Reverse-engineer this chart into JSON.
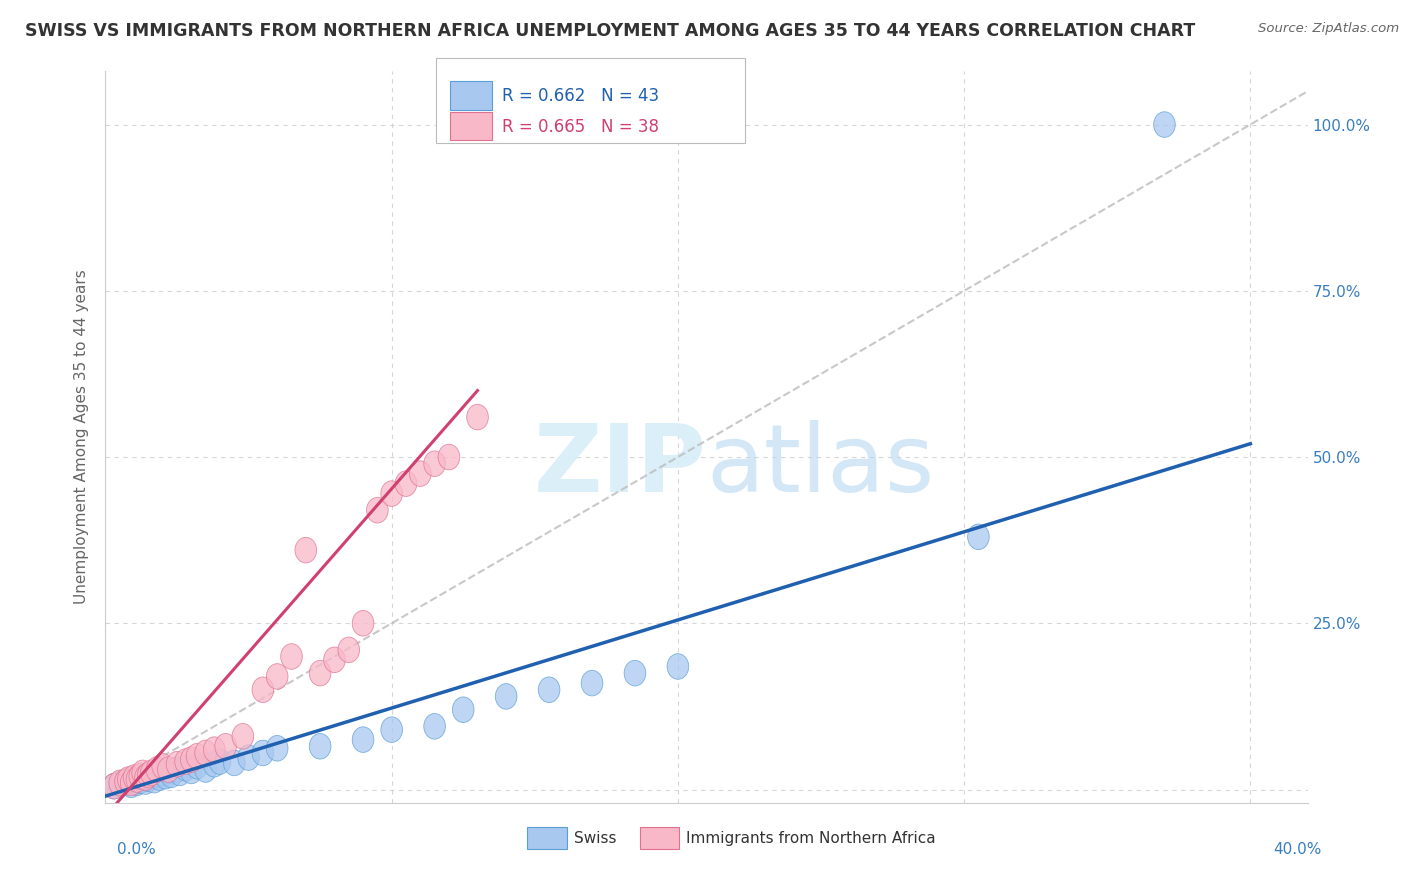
{
  "title": "SWISS VS IMMIGRANTS FROM NORTHERN AFRICA UNEMPLOYMENT AMONG AGES 35 TO 44 YEARS CORRELATION CHART",
  "source": "Source: ZipAtlas.com",
  "ylabel": "Unemployment Among Ages 35 to 44 years",
  "xlim": [
    0.0,
    0.42
  ],
  "ylim": [
    -0.02,
    1.08
  ],
  "swiss_R": 0.662,
  "swiss_N": 43,
  "immigrants_R": 0.665,
  "immigrants_N": 38,
  "swiss_color": "#a8c8f0",
  "swiss_edge_color": "#5a9fd4",
  "swiss_line_color": "#2060b0",
  "immigrants_color": "#f8b8c8",
  "immigrants_edge_color": "#e07090",
  "immigrants_line_color": "#d04070",
  "ref_line_color": "#bbbbbb",
  "background_color": "#ffffff",
  "grid_color": "#cccccc",
  "watermark_color": "#d8eef8",
  "title_color": "#333333",
  "swiss_x": [
    0.003,
    0.005,
    0.007,
    0.008,
    0.009,
    0.01,
    0.011,
    0.012,
    0.013,
    0.014,
    0.015,
    0.016,
    0.017,
    0.018,
    0.019,
    0.02,
    0.021,
    0.022,
    0.023,
    0.025,
    0.026,
    0.028,
    0.03,
    0.032,
    0.035,
    0.038,
    0.04,
    0.045,
    0.05,
    0.055,
    0.06,
    0.075,
    0.09,
    0.1,
    0.115,
    0.125,
    0.14,
    0.155,
    0.17,
    0.185,
    0.2,
    0.305,
    0.37
  ],
  "swiss_y": [
    0.005,
    0.008,
    0.01,
    0.012,
    0.007,
    0.015,
    0.01,
    0.013,
    0.018,
    0.012,
    0.016,
    0.02,
    0.014,
    0.022,
    0.018,
    0.025,
    0.02,
    0.028,
    0.022,
    0.03,
    0.025,
    0.032,
    0.028,
    0.035,
    0.03,
    0.038,
    0.042,
    0.04,
    0.048,
    0.055,
    0.062,
    0.065,
    0.075,
    0.09,
    0.095,
    0.12,
    0.14,
    0.15,
    0.16,
    0.175,
    0.185,
    0.38,
    1.0
  ],
  "immig_x": [
    0.003,
    0.005,
    0.007,
    0.008,
    0.009,
    0.01,
    0.011,
    0.012,
    0.013,
    0.014,
    0.015,
    0.016,
    0.018,
    0.02,
    0.022,
    0.025,
    0.028,
    0.03,
    0.032,
    0.035,
    0.038,
    0.042,
    0.048,
    0.055,
    0.06,
    0.065,
    0.07,
    0.075,
    0.08,
    0.085,
    0.09,
    0.095,
    0.1,
    0.105,
    0.11,
    0.115,
    0.12,
    0.13
  ],
  "immig_y": [
    0.005,
    0.01,
    0.012,
    0.015,
    0.01,
    0.018,
    0.015,
    0.02,
    0.025,
    0.018,
    0.022,
    0.025,
    0.03,
    0.035,
    0.03,
    0.038,
    0.042,
    0.045,
    0.05,
    0.055,
    0.06,
    0.065,
    0.08,
    0.15,
    0.17,
    0.2,
    0.36,
    0.175,
    0.195,
    0.21,
    0.25,
    0.42,
    0.445,
    0.46,
    0.475,
    0.49,
    0.5,
    0.56
  ],
  "swiss_line_x0": 0.0,
  "swiss_line_x1": 0.4,
  "swiss_line_y0": -0.01,
  "swiss_line_y1": 0.52,
  "immig_line_x0": 0.0,
  "immig_line_x1": 0.13,
  "immig_line_y0": -0.04,
  "immig_line_y1": 0.6,
  "ref_line_x0": 0.0,
  "ref_line_x1": 0.42,
  "ref_line_y0": 0.0,
  "ref_line_y1": 1.05
}
